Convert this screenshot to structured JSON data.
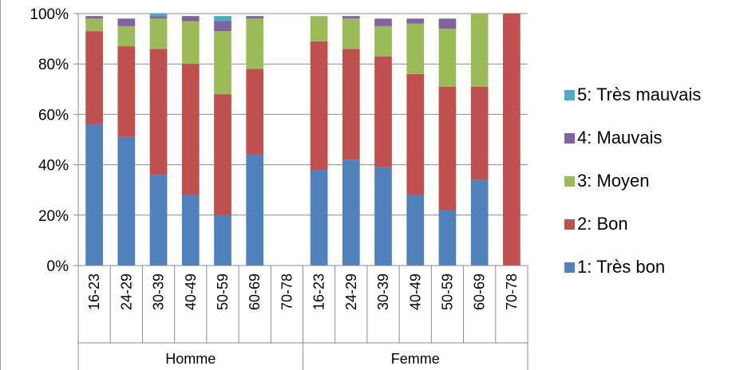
{
  "chart_data": {
    "type": "bar",
    "stacked": true,
    "percent": true,
    "groups": [
      {
        "label": "Homme",
        "categories": [
          "16-23",
          "24-29",
          "30-39",
          "40-49",
          "50-59",
          "60-69",
          "70-78"
        ]
      },
      {
        "label": "Femme",
        "categories": [
          "16-23",
          "24-29",
          "30-39",
          "40-49",
          "50-59",
          "60-69",
          "70-78"
        ]
      }
    ],
    "yticks": [
      "0%",
      "20%",
      "40%",
      "60%",
      "80%",
      "100%"
    ],
    "ylim": [
      0,
      100
    ],
    "grid": true,
    "legend_position": "right",
    "series": [
      {
        "name": "1: Très bon",
        "color": "#4f81bd",
        "values": [
          56,
          51,
          36,
          28,
          20,
          44,
          0,
          38,
          42,
          39,
          28,
          22,
          34,
          0
        ]
      },
      {
        "name": "2: Bon",
        "color": "#c0504d",
        "values": [
          37,
          36,
          50,
          52,
          48,
          34,
          0,
          51,
          44,
          44,
          48,
          49,
          37,
          100
        ]
      },
      {
        "name": "3: Moyen",
        "color": "#9bbb59",
        "values": [
          5,
          8,
          12,
          17,
          25,
          20,
          0,
          10,
          12,
          12,
          20,
          23,
          29,
          0
        ]
      },
      {
        "name": "4: Mauvais",
        "color": "#8064a2",
        "values": [
          1,
          3,
          1,
          2,
          4,
          1,
          0,
          0,
          1,
          3,
          2,
          4,
          0,
          0
        ]
      },
      {
        "name": "5: Très mauvais",
        "color": "#4bacc6",
        "values": [
          0,
          0,
          1,
          0,
          2,
          0,
          0,
          0,
          0,
          0,
          0,
          0,
          0,
          0
        ]
      }
    ]
  }
}
